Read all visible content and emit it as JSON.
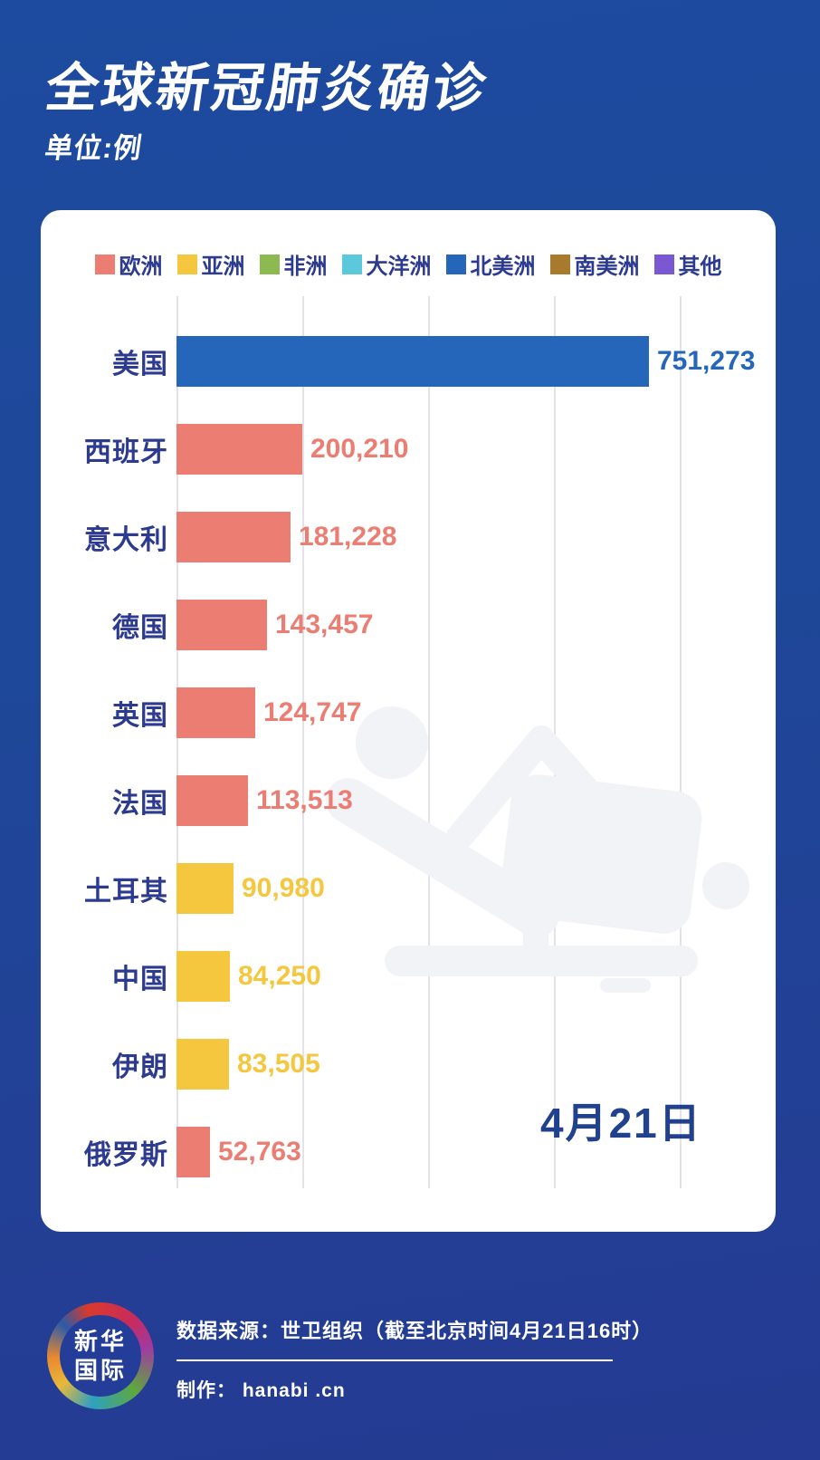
{
  "header": {
    "title": "全球新冠肺炎确诊",
    "unit": "单位:例"
  },
  "chart_data": {
    "type": "bar",
    "orientation": "horizontal",
    "title": "全球新冠肺炎确诊",
    "unit_label": "单位:例",
    "date_annotation": "4月21日",
    "x_axis": {
      "min": 0,
      "max": 800000,
      "gridline_interval": 200000,
      "tick_labels_visible": false,
      "grid": true
    },
    "legend_position": "top",
    "legend": [
      {
        "label": "欧洲",
        "color": "#EC7D72"
      },
      {
        "label": "亚洲",
        "color": "#F5C73E"
      },
      {
        "label": "非洲",
        "color": "#8CBA50"
      },
      {
        "label": "大洋洲",
        "color": "#5BC8DB"
      },
      {
        "label": "北美洲",
        "color": "#2565BA"
      },
      {
        "label": "南美洲",
        "color": "#A87A2D"
      },
      {
        "label": "其他",
        "color": "#7B57D4"
      }
    ],
    "categories": [
      "美国",
      "西班牙",
      "意大利",
      "德国",
      "英国",
      "法国",
      "土耳其",
      "中国",
      "伊朗",
      "俄罗斯"
    ],
    "values": [
      751273,
      200210,
      181228,
      143457,
      124747,
      113513,
      90980,
      84250,
      83505,
      52763
    ],
    "bars": [
      {
        "country": "美国",
        "region": "北美洲",
        "value": 751273,
        "value_label": "751,273"
      },
      {
        "country": "西班牙",
        "region": "欧洲",
        "value": 200210,
        "value_label": "200,210"
      },
      {
        "country": "意大利",
        "region": "欧洲",
        "value": 181228,
        "value_label": "181,228"
      },
      {
        "country": "德国",
        "region": "欧洲",
        "value": 143457,
        "value_label": "143,457"
      },
      {
        "country": "英国",
        "region": "欧洲",
        "value": 124747,
        "value_label": "124,747"
      },
      {
        "country": "法国",
        "region": "欧洲",
        "value": 113513,
        "value_label": "113,513"
      },
      {
        "country": "土耳其",
        "region": "亚洲",
        "value": 90980,
        "value_label": "90,980"
      },
      {
        "country": "中国",
        "region": "亚洲",
        "value": 84250,
        "value_label": "84,250"
      },
      {
        "country": "伊朗",
        "region": "亚洲",
        "value": 83505,
        "value_label": "83,505"
      },
      {
        "country": "俄罗斯",
        "region": "欧洲",
        "value": 52763,
        "value_label": "52,763"
      }
    ]
  },
  "footer": {
    "source": "数据来源：世卫组织（截至北京时间4月21日16时）",
    "maker": "制作： hanabi .cn",
    "logo_line1": "新华",
    "logo_line2": "国际"
  },
  "colors": {
    "background_top": "#1d4b9f",
    "background_bottom": "#253a92",
    "card": "#ffffff",
    "label_text": "#2c3a8f",
    "gridline": "#e3e3e7",
    "watermark": "#f2f3f7"
  }
}
